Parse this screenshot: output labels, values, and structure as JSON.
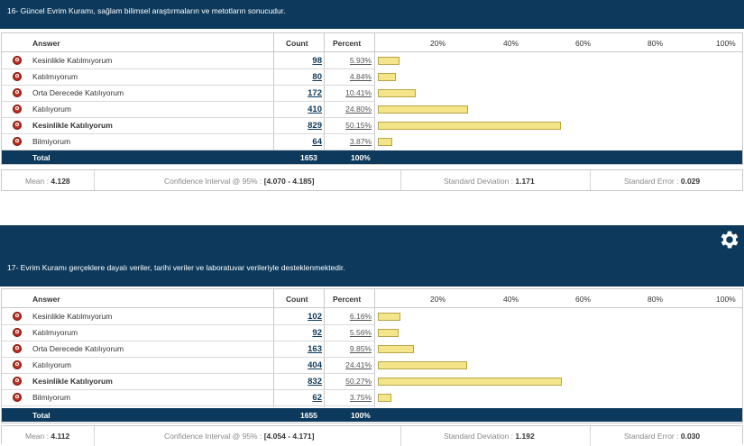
{
  "headers": {
    "answer": "Answer",
    "count": "Count",
    "percent": "Percent",
    "scale": [
      "20%",
      "40%",
      "60%",
      "80%",
      "100%"
    ]
  },
  "questions": [
    {
      "title": "16- Güncel Evrim Kuramı, sağlam bilimsel araştırmaların ve metotların sonucudur.",
      "rows": [
        {
          "label": "Kesinlikle Katılmıyorum",
          "count": "98",
          "percent": "5.93%",
          "value": 5.93,
          "bold": false
        },
        {
          "label": "Katılmıyorum",
          "count": "80",
          "percent": "4.84%",
          "value": 4.84,
          "bold": false
        },
        {
          "label": "Orta Derecede Katılıyorum",
          "count": "172",
          "percent": "10.41%",
          "value": 10.41,
          "bold": false
        },
        {
          "label": "Katılıyorum",
          "count": "410",
          "percent": "24.80%",
          "value": 24.8,
          "bold": false
        },
        {
          "label": "Kesinlikle Katılıyorum",
          "count": "829",
          "percent": "50.15%",
          "value": 50.15,
          "bold": true
        },
        {
          "label": "Bilmiyorum",
          "count": "64",
          "percent": "3.87%",
          "value": 3.87,
          "bold": false
        }
      ],
      "total": {
        "label": "Total",
        "count": "1653",
        "percent": "100%"
      },
      "stats": {
        "mean_label": "Mean :",
        "mean": "4.128",
        "ci_label": "Confidence Interval @ 95% :",
        "ci": "[4.070 - 4.185]",
        "sd_label": "Standard Deviation :",
        "sd": "1.171",
        "se_label": "Standard Error :",
        "se": "0.029"
      }
    },
    {
      "title": "17- Evrim Kuramı gerçeklere dayalı veriler, tarihi veriler ve laboratuvar verileriyle desteklenmektedir.",
      "rows": [
        {
          "label": "Kesinlikle Katılmıyorum",
          "count": "102",
          "percent": "6.16%",
          "value": 6.16,
          "bold": false
        },
        {
          "label": "Katılmıyorum",
          "count": "92",
          "percent": "5.56%",
          "value": 5.56,
          "bold": false
        },
        {
          "label": "Orta Derecede Katılıyorum",
          "count": "163",
          "percent": "9.85%",
          "value": 9.85,
          "bold": false
        },
        {
          "label": "Katılıyorum",
          "count": "404",
          "percent": "24.41%",
          "value": 24.41,
          "bold": false
        },
        {
          "label": "Kesinlikle Katılıyorum",
          "count": "832",
          "percent": "50.27%",
          "value": 50.27,
          "bold": true
        },
        {
          "label": "Bilmiyorum",
          "count": "62",
          "percent": "3.75%",
          "value": 3.75,
          "bold": false
        }
      ],
      "total": {
        "label": "Total",
        "count": "1655",
        "percent": "100%"
      },
      "stats": {
        "mean_label": "Mean :",
        "mean": "4.112",
        "ci_label": "Confidence Interval @ 95% :",
        "ci": "[4.054 - 4.171]",
        "sd_label": "Standard Deviation :",
        "sd": "1.192",
        "se_label": "Standard Error :",
        "se": "0.030"
      }
    }
  ]
}
